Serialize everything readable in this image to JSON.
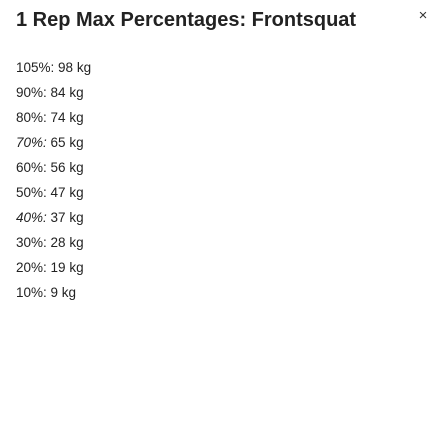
{
  "dialog": {
    "title": "1 Rep Max Percentages: Frontsquat",
    "close_icon": "×"
  },
  "percentages": [
    {
      "percent": "105%:",
      "weight": "98 kg",
      "italic": false
    },
    {
      "percent": "90%:",
      "weight": "84 kg",
      "italic": false
    },
    {
      "percent": "80%:",
      "weight": "74 kg",
      "italic": false
    },
    {
      "percent": "70%:",
      "weight": "65 kg",
      "italic": true
    },
    {
      "percent": "60%:",
      "weight": "56 kg",
      "italic": false
    },
    {
      "percent": "50%:",
      "weight": "47 kg",
      "italic": false
    },
    {
      "percent": "40%:",
      "weight": "37 kg",
      "italic": true
    },
    {
      "percent": "30%:",
      "weight": "28 kg",
      "italic": false
    },
    {
      "percent": "20%:",
      "weight": "19 kg",
      "italic": false
    },
    {
      "percent": "10%:",
      "weight": "9 kg",
      "italic": false
    }
  ]
}
